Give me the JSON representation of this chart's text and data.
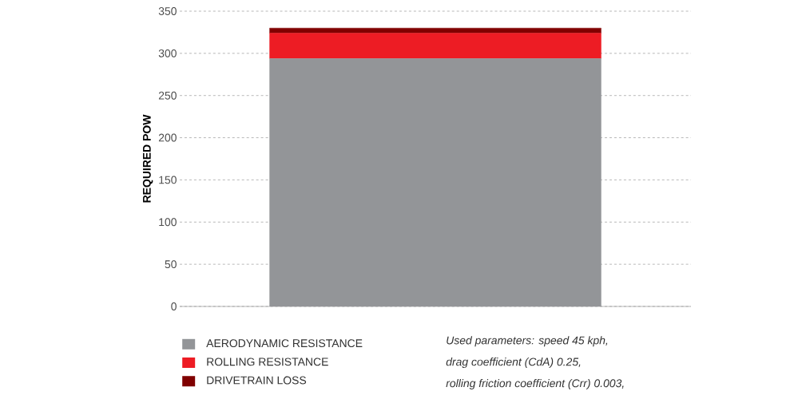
{
  "chart_data": {
    "type": "bar",
    "stacked": true,
    "ylabel": "REQUIRED POW",
    "categories": [
      null
    ],
    "series": [
      {
        "name": "AERODYNAMIC RESISTANCE",
        "color": "#939598",
        "values": [
          294
        ]
      },
      {
        "name": "ROLLING RESISTANCE",
        "color": "#ed1c24",
        "values": [
          30
        ]
      },
      {
        "name": "DRIVETRAIN LOSS",
        "color": "#800000",
        "values": [
          6
        ]
      }
    ],
    "ylim": [
      0,
      350
    ],
    "yticks": [
      0,
      50,
      100,
      150,
      200,
      250,
      300,
      350
    ],
    "grid": "y",
    "legend": "bottom left",
    "annotations": [
      "Used parameters: speed 45 kph,",
      "drag coefficient (CdA) 0.25,",
      "rolling friction coefficient (Crr) 0.003,"
    ]
  }
}
